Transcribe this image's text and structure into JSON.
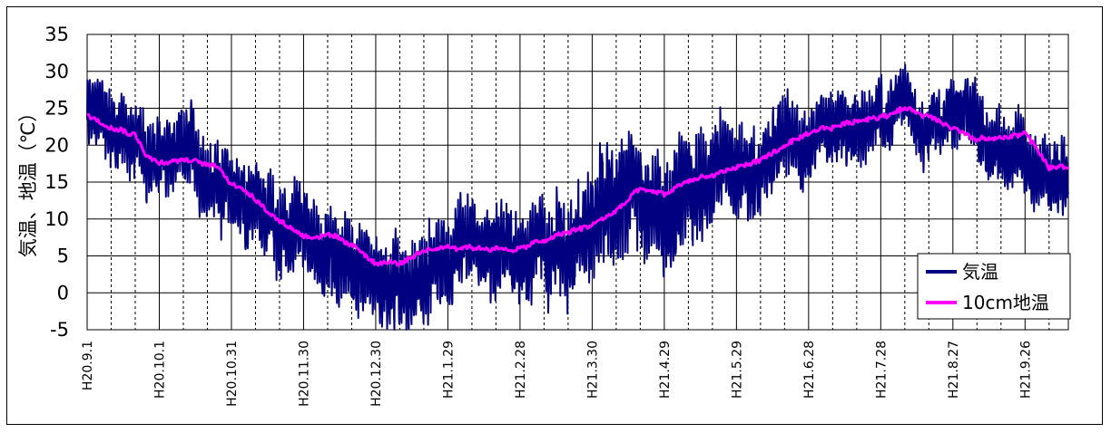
{
  "chart_data": {
    "type": "line",
    "title": "",
    "ylabel": "気温、地温（℃）",
    "xlabel": "",
    "ylim": [
      -5,
      35
    ],
    "yticks": [
      -5,
      0,
      5,
      10,
      15,
      20,
      25,
      30,
      35
    ],
    "grid": true,
    "legend_position": "bottom-right",
    "x_tick_labels": [
      "H20.9.1",
      "H20.10.1",
      "H20.10.31",
      "H20.11.30",
      "H20.12.30",
      "H21.1.29",
      "H21.2.28",
      "H21.3.30",
      "H21.4.29",
      "H21.5.29",
      "H21.6.28",
      "H21.7.28",
      "H21.8.27",
      "H21.9.26"
    ],
    "x_tick_day_index": [
      0,
      30,
      60,
      90,
      120,
      150,
      180,
      210,
      240,
      270,
      300,
      330,
      360,
      390
    ],
    "x_range_days": [
      0,
      408
    ],
    "series": [
      {
        "name": "気温",
        "color": "#000080",
        "mean_profile": [
          [
            0,
            24
          ],
          [
            10,
            23
          ],
          [
            20,
            20
          ],
          [
            30,
            18
          ],
          [
            45,
            17
          ],
          [
            55,
            16
          ],
          [
            60,
            13
          ],
          [
            70,
            12
          ],
          [
            80,
            9
          ],
          [
            90,
            6
          ],
          [
            100,
            5
          ],
          [
            110,
            4
          ],
          [
            120,
            3
          ],
          [
            130,
            2
          ],
          [
            140,
            2
          ],
          [
            150,
            3
          ],
          [
            160,
            4
          ],
          [
            170,
            4
          ],
          [
            180,
            5
          ],
          [
            190,
            7
          ],
          [
            200,
            8
          ],
          [
            210,
            10
          ],
          [
            220,
            12
          ],
          [
            230,
            13
          ],
          [
            240,
            13
          ],
          [
            250,
            14
          ],
          [
            260,
            16
          ],
          [
            270,
            17
          ],
          [
            280,
            18
          ],
          [
            290,
            20
          ],
          [
            300,
            21
          ],
          [
            310,
            22
          ],
          [
            320,
            23
          ],
          [
            330,
            24
          ],
          [
            340,
            25
          ],
          [
            350,
            25
          ],
          [
            360,
            24
          ],
          [
            370,
            22
          ],
          [
            380,
            20
          ],
          [
            390,
            19
          ],
          [
            400,
            15
          ],
          [
            408,
            16
          ]
        ],
        "amplitude_profile": [
          [
            0,
            5
          ],
          [
            60,
            5
          ],
          [
            90,
            6
          ],
          [
            150,
            6
          ],
          [
            180,
            6
          ],
          [
            200,
            7
          ],
          [
            230,
            8
          ],
          [
            260,
            7
          ],
          [
            300,
            5
          ],
          [
            350,
            4
          ],
          [
            380,
            5
          ],
          [
            408,
            5
          ]
        ]
      },
      {
        "name": "10cm地温",
        "color": "#ff00ff",
        "mean_profile": [
          [
            0,
            24
          ],
          [
            10,
            23
          ],
          [
            20,
            22
          ],
          [
            25,
            19
          ],
          [
            30,
            18
          ],
          [
            40,
            18
          ],
          [
            55,
            17
          ],
          [
            60,
            15
          ],
          [
            70,
            13
          ],
          [
            80,
            10
          ],
          [
            90,
            8
          ],
          [
            100,
            8
          ],
          [
            110,
            6
          ],
          [
            120,
            4
          ],
          [
            130,
            4
          ],
          [
            140,
            5
          ],
          [
            150,
            6
          ],
          [
            160,
            6
          ],
          [
            170,
            6
          ],
          [
            180,
            6
          ],
          [
            190,
            7
          ],
          [
            200,
            8
          ],
          [
            210,
            9
          ],
          [
            220,
            11
          ],
          [
            230,
            14
          ],
          [
            240,
            13
          ],
          [
            250,
            15
          ],
          [
            260,
            16
          ],
          [
            270,
            17
          ],
          [
            280,
            18
          ],
          [
            290,
            20
          ],
          [
            300,
            21
          ],
          [
            310,
            22
          ],
          [
            320,
            23
          ],
          [
            330,
            24
          ],
          [
            340,
            25
          ],
          [
            350,
            24
          ],
          [
            360,
            23
          ],
          [
            370,
            21
          ],
          [
            380,
            21
          ],
          [
            390,
            22
          ],
          [
            400,
            17
          ],
          [
            408,
            17
          ]
        ],
        "amplitude_profile": [
          [
            0,
            1
          ],
          [
            408,
            1
          ]
        ]
      }
    ]
  }
}
